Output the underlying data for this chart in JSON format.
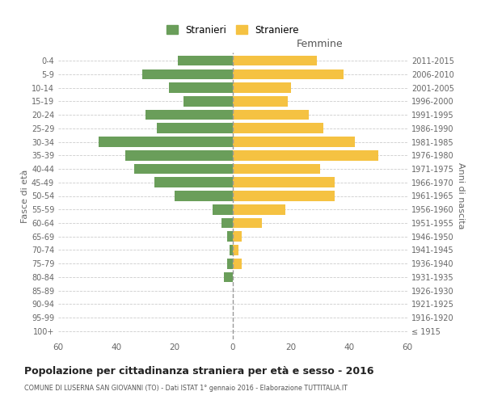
{
  "age_groups": [
    "100+",
    "95-99",
    "90-94",
    "85-89",
    "80-84",
    "75-79",
    "70-74",
    "65-69",
    "60-64",
    "55-59",
    "50-54",
    "45-49",
    "40-44",
    "35-39",
    "30-34",
    "25-29",
    "20-24",
    "15-19",
    "10-14",
    "5-9",
    "0-4"
  ],
  "birth_years": [
    "≤ 1915",
    "1916-1920",
    "1921-1925",
    "1926-1930",
    "1931-1935",
    "1936-1940",
    "1941-1945",
    "1946-1950",
    "1951-1955",
    "1956-1960",
    "1961-1965",
    "1966-1970",
    "1971-1975",
    "1976-1980",
    "1981-1985",
    "1986-1990",
    "1991-1995",
    "1996-2000",
    "2001-2005",
    "2006-2010",
    "2011-2015"
  ],
  "males": [
    0,
    0,
    0,
    0,
    3,
    2,
    1,
    2,
    4,
    7,
    20,
    27,
    34,
    37,
    46,
    26,
    30,
    17,
    22,
    31,
    19
  ],
  "females": [
    0,
    0,
    0,
    0,
    0,
    3,
    2,
    3,
    10,
    18,
    35,
    35,
    30,
    50,
    42,
    31,
    26,
    19,
    20,
    38,
    29
  ],
  "male_color": "#6a9e5a",
  "female_color": "#f5c242",
  "background_color": "#ffffff",
  "grid_color": "#cccccc",
  "title": "Popolazione per cittadinanza straniera per età e sesso - 2016",
  "subtitle": "COMUNE DI LUSERNA SAN GIOVANNI (TO) - Dati ISTAT 1° gennaio 2016 - Elaborazione TUTTITALIA.IT",
  "right_label": "Femmine",
  "ylabel": "Fasce di età",
  "right_ylabel": "Anni di nascita",
  "legend_males": "Stranieri",
  "legend_females": "Straniere",
  "xlim": 60,
  "bar_height": 0.75
}
